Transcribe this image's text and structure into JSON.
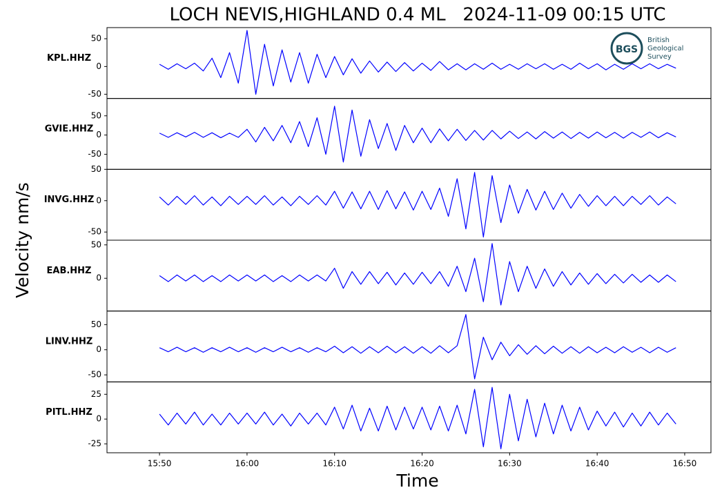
{
  "figure": {
    "title": "LOCH NEVIS,HIGHLAND 0.4 ML   2024-11-09 00:15 UTC",
    "xlabel": "Time",
    "ylabel": "Velocity nm/s",
    "x": [
      "15:50",
      "15:51",
      "15:52",
      "15:53",
      "15:54",
      "15:55",
      "15:56",
      "15:57",
      "15:58",
      "15:59",
      "16:00",
      "16:01",
      "16:02",
      "16:03",
      "16:04",
      "16:05",
      "16:06",
      "16:07",
      "16:08",
      "16:09",
      "16:10",
      "16:11",
      "16:12",
      "16:13",
      "16:14",
      "16:15",
      "16:16",
      "16:17",
      "16:18",
      "16:19",
      "16:20",
      "16:21",
      "16:22",
      "16:23",
      "16:24",
      "16:25",
      "16:26",
      "16:27",
      "16:28",
      "16:29",
      "16:30",
      "16:31",
      "16:32",
      "16:33",
      "16:34",
      "16:35",
      "16:36",
      "16:37",
      "16:38",
      "16:39",
      "16:40",
      "16:41",
      "16:42",
      "16:43",
      "16:44",
      "16:45",
      "16:46",
      "16:47",
      "16:48",
      "16:49"
    ],
    "xlim": [
      "15:44",
      "16:53"
    ],
    "xticks": [
      "15:50",
      "16:00",
      "16:10",
      "16:20",
      "16:30",
      "16:40",
      "16:50"
    ],
    "logo": {
      "mark": "BGS",
      "lines": [
        "British",
        "Geological",
        "Survey"
      ]
    }
  },
  "chart_data": [
    {
      "type": "line",
      "label": "KPL.HHZ",
      "color": "#0000ff",
      "ylim": [
        -57.5,
        70
      ],
      "yticks": [
        -50,
        0,
        50
      ],
      "values": [
        4,
        -5,
        5,
        -4,
        6,
        -8,
        15,
        -20,
        25,
        -30,
        65,
        -50,
        40,
        -35,
        30,
        -28,
        25,
        -30,
        22,
        -20,
        18,
        -15,
        14,
        -12,
        10,
        -10,
        8,
        -9,
        7,
        -8,
        6,
        -7,
        9,
        -6,
        5,
        -6,
        5,
        -5,
        6,
        -5,
        4,
        -5,
        5,
        -4,
        5,
        -5,
        4,
        -5,
        6,
        -4,
        5,
        -6,
        4,
        -5,
        5,
        -4,
        5,
        -4,
        4,
        -3
      ]
    },
    {
      "type": "line",
      "label": "GVIE.HHZ",
      "color": "#0000ff",
      "ylim": [
        -89,
        95
      ],
      "yticks": [
        -50,
        0,
        50
      ],
      "values": [
        5,
        -6,
        6,
        -5,
        7,
        -6,
        6,
        -7,
        5,
        -6,
        15,
        -18,
        20,
        -15,
        25,
        -20,
        35,
        -30,
        45,
        -50,
        75,
        -70,
        65,
        -55,
        40,
        -35,
        30,
        -40,
        25,
        -20,
        18,
        -20,
        16,
        -15,
        15,
        -14,
        12,
        -13,
        12,
        -10,
        10,
        -9,
        8,
        -10,
        9,
        -8,
        8,
        -9,
        7,
        -8,
        8,
        -7,
        7,
        -8,
        7,
        -6,
        8,
        -7,
        6,
        -5
      ]
    },
    {
      "type": "line",
      "label": "INVG.HHZ",
      "color": "#0000ff",
      "ylim": [
        -63,
        50
      ],
      "yticks": [
        -50,
        0,
        50
      ],
      "values": [
        6,
        -7,
        7,
        -6,
        8,
        -7,
        6,
        -8,
        7,
        -6,
        7,
        -6,
        8,
        -7,
        6,
        -8,
        7,
        -6,
        8,
        -7,
        15,
        -12,
        14,
        -13,
        15,
        -14,
        16,
        -13,
        14,
        -15,
        15,
        -14,
        20,
        -25,
        35,
        -45,
        45,
        -58,
        40,
        -35,
        25,
        -20,
        18,
        -15,
        15,
        -14,
        12,
        -12,
        10,
        -9,
        8,
        -8,
        7,
        -8,
        7,
        -6,
        8,
        -7,
        6,
        -5
      ]
    },
    {
      "type": "line",
      "label": "EAB.HHZ",
      "color": "#0000ff",
      "ylim": [
        -49,
        57
      ],
      "yticks": [
        0,
        50
      ],
      "values": [
        4,
        -5,
        5,
        -4,
        5,
        -5,
        4,
        -5,
        5,
        -4,
        5,
        -4,
        5,
        -5,
        4,
        -5,
        5,
        -4,
        5,
        -4,
        15,
        -15,
        10,
        -9,
        10,
        -8,
        9,
        -10,
        8,
        -9,
        9,
        -8,
        10,
        -12,
        18,
        -20,
        30,
        -35,
        52,
        -40,
        25,
        -20,
        18,
        -15,
        14,
        -12,
        10,
        -10,
        8,
        -9,
        7,
        -8,
        6,
        -7,
        6,
        -6,
        5,
        -6,
        5,
        -5
      ]
    },
    {
      "type": "line",
      "label": "LINV.HHZ",
      "color": "#0000ff",
      "ylim": [
        -64,
        77
      ],
      "yticks": [
        -50,
        0,
        50
      ],
      "values": [
        4,
        -4,
        5,
        -4,
        4,
        -5,
        4,
        -4,
        5,
        -4,
        4,
        -5,
        4,
        -4,
        5,
        -4,
        4,
        -5,
        4,
        -4,
        7,
        -6,
        6,
        -7,
        6,
        -6,
        7,
        -6,
        6,
        -7,
        6,
        -7,
        8,
        -6,
        8,
        70,
        -58,
        25,
        -20,
        15,
        -12,
        10,
        -9,
        8,
        -8,
        7,
        -7,
        6,
        -7,
        6,
        -6,
        5,
        -6,
        6,
        -5,
        5,
        -6,
        5,
        -5,
        4
      ]
    },
    {
      "type": "line",
      "label": "PITL.HHZ",
      "color": "#0000ff",
      "ylim": [
        -34,
        37.5
      ],
      "yticks": [
        -25,
        0,
        25
      ],
      "values": [
        5,
        -6,
        6,
        -5,
        7,
        -6,
        5,
        -6,
        6,
        -5,
        6,
        -5,
        7,
        -6,
        5,
        -7,
        6,
        -5,
        6,
        -6,
        12,
        -10,
        14,
        -12,
        11,
        -12,
        13,
        -11,
        12,
        -10,
        12,
        -11,
        13,
        -12,
        14,
        -15,
        30,
        -28,
        32,
        -30,
        25,
        -22,
        20,
        -18,
        16,
        -15,
        14,
        -12,
        12,
        -11,
        8,
        -7,
        7,
        -8,
        6,
        -7,
        7,
        -6,
        6,
        -5
      ]
    }
  ]
}
